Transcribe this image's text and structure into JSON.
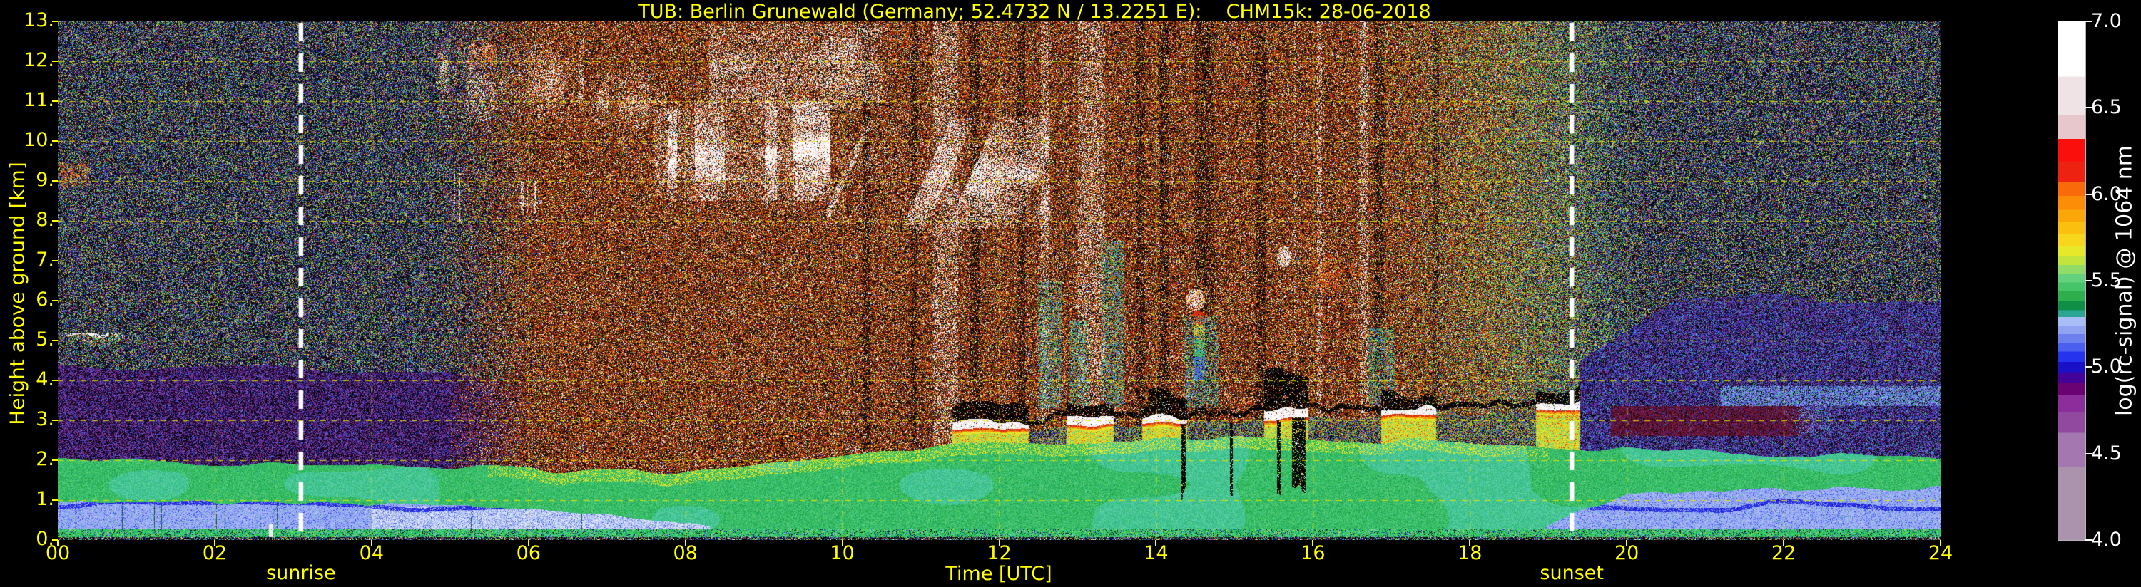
{
  "title": {
    "text": "TUB: Berlin Grunewald (Germany; 52.4732 N / 13.2251 E):    CHM15k: 28-06-2018",
    "color": "#ffff00"
  },
  "axes": {
    "x": {
      "label": "Time [UTC]",
      "ticks": [
        "00",
        "02",
        "04",
        "06",
        "08",
        "10",
        "12",
        "14",
        "16",
        "18",
        "20",
        "22",
        "24"
      ]
    },
    "y": {
      "label": "Height above ground [km]",
      "ticks": [
        "0.",
        "1.",
        "2.",
        "3.",
        "4.",
        "5.",
        "6.",
        "7.",
        "8.",
        "9.",
        "10.",
        "11.",
        "12.",
        "13."
      ]
    },
    "grid_color": "#e8e800",
    "tick_color": "#ffff00"
  },
  "annotations": {
    "sunrise": {
      "label": "sunrise",
      "time_utc": 3.1
    },
    "sunset": {
      "label": "sunset",
      "time_utc": 19.3
    },
    "line_color": "#ffffff"
  },
  "colorbar": {
    "label": "log(rc-signal) @ 1064 nm",
    "ticks": [
      "7.0",
      "6.5",
      "6.0",
      "5.5",
      "5.0",
      "4.5",
      "4.0"
    ],
    "min": 4.0,
    "max": 7.0,
    "text_color": "#ffffff",
    "stops": [
      [
        4.0,
        "#ab93ad"
      ],
      [
        4.42,
        "#a477b0"
      ],
      [
        4.62,
        "#91489f"
      ],
      [
        4.74,
        "#8c2d9c"
      ],
      [
        4.84,
        "#6a0272"
      ],
      [
        4.91,
        "#43039b"
      ],
      [
        4.97,
        "#1a10c8"
      ],
      [
        5.03,
        "#2633ee"
      ],
      [
        5.09,
        "#4a5ff0"
      ],
      [
        5.14,
        "#6d80ee"
      ],
      [
        5.19,
        "#8fa3f2"
      ],
      [
        5.24,
        "#a9bdf6"
      ],
      [
        5.29,
        "#2ba695"
      ],
      [
        5.33,
        "#0e8f45"
      ],
      [
        5.38,
        "#2fae4e"
      ],
      [
        5.44,
        "#45c46a"
      ],
      [
        5.49,
        "#63d17e"
      ],
      [
        5.54,
        "#90dc66"
      ],
      [
        5.59,
        "#c2e43c"
      ],
      [
        5.64,
        "#e8e82a"
      ],
      [
        5.7,
        "#f7d61c"
      ],
      [
        5.77,
        "#fbbf10"
      ],
      [
        5.84,
        "#fba70a"
      ],
      [
        5.91,
        "#fb8e06"
      ],
      [
        5.99,
        "#f96b0a"
      ],
      [
        6.07,
        "#ee2211"
      ],
      [
        6.19,
        "#fb0f0c"
      ],
      [
        6.32,
        "#e8c7cc"
      ],
      [
        6.46,
        "#efe3e6"
      ],
      [
        6.68,
        "#ffffff"
      ],
      [
        7.0,
        "#ffffff"
      ]
    ]
  },
  "chart_data": {
    "type": "heatmap",
    "title": "TUB: Berlin Grunewald (Germany; 52.4732 N / 13.2251 E):    CHM15k: 28-06-2018",
    "xlabel": "Time [UTC]",
    "ylabel": "Height above ground [km]",
    "xlim": [
      0,
      24
    ],
    "ylim": [
      0,
      13
    ],
    "colorbar_label": "log(rc-signal) @ 1064 nm",
    "colorbar_range": [
      4.0,
      7.0
    ],
    "sunrise_utc": 3.1,
    "sunset_utc": 19.3,
    "daytime_noise_window_utc": [
      4.6,
      19.9
    ],
    "boundary_layer_top_km_by_hour": [
      2.05,
      2.0,
      1.95,
      1.92,
      1.88,
      1.82,
      1.78,
      1.75,
      1.72,
      1.85,
      2.05,
      2.3,
      2.4,
      2.45,
      2.5,
      2.55,
      2.55,
      2.5,
      2.45,
      2.35,
      2.25,
      2.2,
      2.15,
      2.1,
      2.05
    ],
    "green_layer_base_km_by_hour": [
      1.0,
      0.97,
      0.95,
      0.92,
      0.9,
      0.85,
      0.8,
      0.68,
      0.45,
      0.05,
      0,
      0,
      0,
      0,
      0,
      0,
      0,
      0,
      0,
      0.35,
      1.2,
      1.25,
      1.28,
      1.3,
      1.3
    ],
    "cumulus": {
      "t0": 11.4,
      "t1": 19.4,
      "base0_km": 2.75,
      "base1_km": 3.25,
      "deep_shadow_utc": [
        13.9,
        16.6
      ],
      "dark_columns_utc": [
        14.2,
        16.15
      ]
    },
    "features": [
      {
        "type": "cirrus",
        "t0": 4.8,
        "t1": 6.7,
        "h0": 10.5,
        "h1": 12.45,
        "density": 0.4,
        "streak": 0.7,
        "orange": 0.3
      },
      {
        "type": "cirrus",
        "t0": 6.8,
        "t1": 7.75,
        "h0": 10.3,
        "h1": 11.7,
        "density": 0.3,
        "streak": 0.6,
        "orange": 0.12
      },
      {
        "type": "cirrus",
        "t0": 7.6,
        "t1": 9.85,
        "h0": 8.5,
        "h1": 11.0,
        "density": 0.8,
        "streak": 0.5,
        "orange": 0.06
      },
      {
        "type": "cirrus",
        "t0": 8.3,
        "t1": 10.5,
        "h0": 10.8,
        "h1": 12.95,
        "density": 0.5,
        "streak": 0.3,
        "orange": 0.04
      },
      {
        "type": "cirrus",
        "t0": 9.8,
        "t1": 12.65,
        "h0": 7.8,
        "h1": 10.6,
        "density": 0.55,
        "streak": 0.85,
        "orange": 0.05,
        "falling": true
      },
      {
        "type": "orange_wisp",
        "t0": 0.03,
        "t1": 0.4,
        "h0": 8.85,
        "h1": 9.5,
        "density": 0.7
      },
      {
        "type": "orange_wisp",
        "t0": 5.25,
        "t1": 5.6,
        "h0": 11.9,
        "h1": 12.5,
        "density": 0.5
      },
      {
        "type": "orange_wisp",
        "t0": 10.55,
        "t1": 10.9,
        "h0": 12.3,
        "h1": 12.9,
        "density": 0.4
      },
      {
        "type": "orange_wisp",
        "t0": 22.15,
        "t1": 22.3,
        "h0": 12.2,
        "h1": 12.5,
        "density": 0.4
      },
      {
        "type": "thin_cloud",
        "t0": 0.1,
        "t1": 1.05,
        "h0": 4.78,
        "h1": 5.2
      },
      {
        "type": "blob",
        "t0": 14.38,
        "t1": 14.62,
        "h0": 5.75,
        "h1": 6.3,
        "orange": 0.35
      },
      {
        "type": "rainbow_fall",
        "t0": 14.48,
        "t1": 14.62,
        "h0": 4.0,
        "h1": 5.75
      },
      {
        "type": "blob",
        "t0": 15.53,
        "t1": 15.72,
        "h0": 6.85,
        "h1": 7.4,
        "orange": 0.1
      },
      {
        "type": "orange_wisp",
        "t0": 16.0,
        "t1": 16.35,
        "h0": 6.2,
        "h1": 7.05,
        "density": 0.55
      },
      {
        "type": "orange_wisp",
        "t0": 16.48,
        "t1": 16.62,
        "h0": 6.5,
        "h1": 7.0,
        "density": 0.5
      },
      {
        "type": "white_streaks",
        "t0": 5.0,
        "t1": 5.2,
        "h0": 8.0,
        "h1": 9.3
      },
      {
        "type": "white_streaks",
        "t0": 5.9,
        "t1": 6.1,
        "h0": 8.2,
        "h1": 9.0
      },
      {
        "type": "white_column",
        "t0": 2.69,
        "t1": 2.75,
        "h0": 0.08,
        "h1": 0.4
      },
      {
        "type": "bluegreen_stripe",
        "t0": 12.5,
        "t1": 12.8,
        "h0": 3.3,
        "h1": 6.5
      },
      {
        "type": "bluegreen_stripe",
        "t0": 12.9,
        "t1": 13.15,
        "h0": 3.3,
        "h1": 5.5
      },
      {
        "type": "bluegreen_stripe",
        "t0": 13.3,
        "t1": 13.6,
        "h0": 3.3,
        "h1": 7.5
      },
      {
        "type": "bluegreen_stripe",
        "t0": 14.35,
        "t1": 14.8,
        "h0": 3.3,
        "h1": 5.6
      },
      {
        "type": "bluegreen_stripe",
        "t0": 16.7,
        "t1": 17.05,
        "h0": 3.4,
        "h1": 5.3
      },
      {
        "type": "maroon_band",
        "t0": 19.8,
        "t1": 22.6,
        "h0": 2.6,
        "h1": 3.35
      },
      {
        "type": "blue_band",
        "t0": 21.2,
        "t1": 24.0,
        "h0": 3.35,
        "h1": 3.85
      }
    ]
  }
}
